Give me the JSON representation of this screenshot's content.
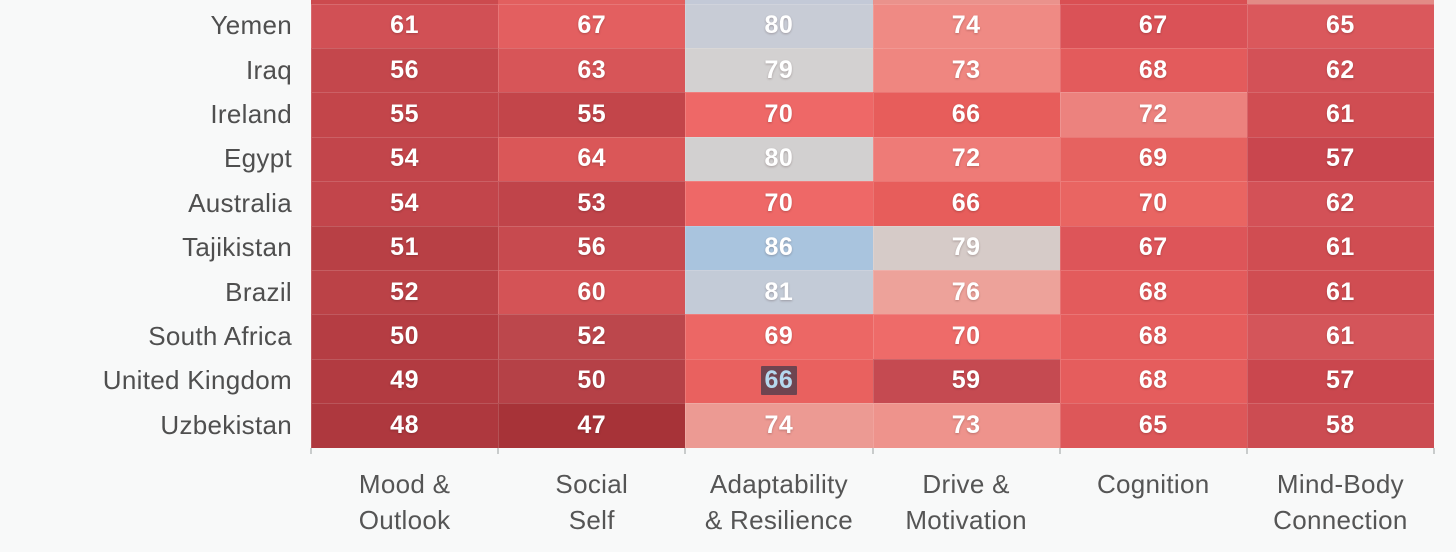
{
  "chart_data": {
    "type": "heatmap",
    "title": "",
    "legend": "none",
    "grid_lines": "off",
    "columns": [
      {
        "label_lines": [
          "Mood &",
          "Outlook"
        ]
      },
      {
        "label_lines": [
          "Social",
          "Self"
        ]
      },
      {
        "label_lines": [
          "Adaptability",
          "& Resilience"
        ]
      },
      {
        "label_lines": [
          "Drive &",
          "Motivation"
        ]
      },
      {
        "label_lines": [
          "Cognition"
        ]
      },
      {
        "label_lines": [
          "Mind-Body",
          "Connection"
        ]
      }
    ],
    "rows": [
      {
        "country": "Yemen",
        "values": [
          61,
          67,
          80,
          74,
          67,
          65
        ],
        "colors": [
          "#d15055",
          "#e35f60",
          "#c8ccd6",
          "#ef8a84",
          "#da5257",
          "#da585c"
        ]
      },
      {
        "country": "Iraq",
        "values": [
          56,
          63,
          79,
          73,
          68,
          62
        ],
        "colors": [
          "#c4474c",
          "#d75558",
          "#d3d1d1",
          "#ef8680",
          "#e35b5c",
          "#d35157"
        ]
      },
      {
        "country": "Ireland",
        "values": [
          55,
          55,
          70,
          66,
          72,
          61
        ],
        "colors": [
          "#c3454a",
          "#c3454a",
          "#ee6867",
          "#e75d5b",
          "#ec827e",
          "#d04d52"
        ]
      },
      {
        "country": "Egypt",
        "values": [
          54,
          64,
          80,
          72,
          69,
          57
        ],
        "colors": [
          "#c2454b",
          "#da5758",
          "#d2d0d0",
          "#ee7b77",
          "#e66260",
          "#c9464e"
        ]
      },
      {
        "country": "Australia",
        "values": [
          54,
          53,
          70,
          66,
          70,
          62
        ],
        "colors": [
          "#c2454b",
          "#c0444a",
          "#ee6867",
          "#e75d5b",
          "#e96562",
          "#d35157"
        ]
      },
      {
        "country": "Tajikistan",
        "values": [
          51,
          56,
          86,
          79,
          67,
          61
        ],
        "colors": [
          "#b84045",
          "#c74a4f",
          "#a9c4de",
          "#d6cbc8",
          "#dd5559",
          "#d04d52"
        ]
      },
      {
        "country": "Brazil",
        "values": [
          52,
          60,
          81,
          76,
          68,
          61
        ],
        "colors": [
          "#bb4247",
          "#d45356",
          "#c3cbd7",
          "#eda29a",
          "#e35b5c",
          "#d04d52"
        ]
      },
      {
        "country": "South Africa",
        "values": [
          50,
          52,
          69,
          70,
          68,
          61
        ],
        "colors": [
          "#b53d43",
          "#bc474c",
          "#ec6765",
          "#ee6b69",
          "#e55d5d",
          "#d4555a"
        ]
      },
      {
        "country": "United Kingdom",
        "values": [
          49,
          50,
          66,
          59,
          68,
          57
        ],
        "colors": [
          "#b23b41",
          "#b54147",
          "#e9615f",
          "#c54a51",
          "#e55d5d",
          "#ca474e"
        ]
      },
      {
        "country": "Uzbekistan",
        "values": [
          48,
          47,
          74,
          73,
          65,
          58
        ],
        "colors": [
          "#ae383e",
          "#a73338",
          "#ec9a93",
          "#ee938c",
          "#dd5759",
          "#cc4c52"
        ]
      }
    ],
    "partial_top_row_colors": [
      "#cc4a4e",
      "#e25f5f",
      "#c3c9d7",
      "#ea928c",
      "#d94f53",
      "#e28b86"
    ],
    "selected_cell": {
      "row_index": 8,
      "column_index": 2,
      "value": 66,
      "text_color": "#b5d8ee",
      "highlight_color": "#6f4450"
    }
  },
  "theme": {
    "background": "#f8f9f9",
    "row_label_color": "#4f4f4f",
    "column_label_color": "#555555",
    "cell_text_color": "#ffffff",
    "tick_color": "#c9cccc"
  }
}
